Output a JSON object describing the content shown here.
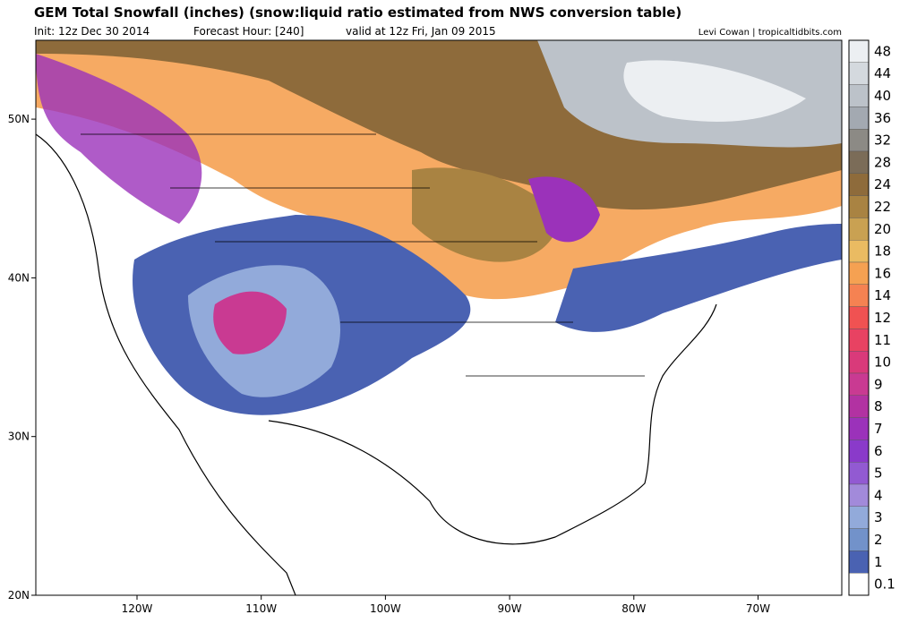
{
  "header": {
    "title": "GEM Total Snowfall (inches) (snow:liquid ratio estimated from NWS conversion table)",
    "init": "Init: 12z Dec 30 2014",
    "forecast_hour": "Forecast Hour: [240]",
    "valid": "valid at 12z Fri, Jan 09 2015",
    "credit": "Levi Cowan | tropicaltidbits.com"
  },
  "map": {
    "lon_ticks": [
      {
        "value": -120,
        "label": "120W"
      },
      {
        "value": -110,
        "label": "110W"
      },
      {
        "value": -100,
        "label": "100W"
      },
      {
        "value": -90,
        "label": "90W"
      },
      {
        "value": -80,
        "label": "80W"
      },
      {
        "value": -70,
        "label": "70W"
      }
    ],
    "lat_ticks": [
      {
        "value": 20,
        "label": "20N"
      },
      {
        "value": 30,
        "label": "30N"
      },
      {
        "value": 40,
        "label": "40N"
      },
      {
        "value": 50,
        "label": "50N"
      }
    ]
  },
  "colorbar": {
    "levels": [
      {
        "value": 48,
        "color": "#eceff2"
      },
      {
        "value": 44,
        "color": "#d4d9de"
      },
      {
        "value": 40,
        "color": "#bcc2c9"
      },
      {
        "value": 36,
        "color": "#a3a9b1"
      },
      {
        "value": 32,
        "color": "#8c8a85"
      },
      {
        "value": 28,
        "color": "#7b6c58"
      },
      {
        "value": 24,
        "color": "#8e6b3b"
      },
      {
        "value": 22,
        "color": "#a98342"
      },
      {
        "value": 20,
        "color": "#c9a152"
      },
      {
        "value": 18,
        "color": "#eabb62"
      },
      {
        "value": 16,
        "color": "#f5a152"
      },
      {
        "value": 14,
        "color": "#f58252"
      },
      {
        "value": 12,
        "color": "#f05252"
      },
      {
        "value": 11,
        "color": "#e84262"
      },
      {
        "value": 10,
        "color": "#d93a7a"
      },
      {
        "value": 9,
        "color": "#c93a92"
      },
      {
        "value": 8,
        "color": "#b232a2"
      },
      {
        "value": 7,
        "color": "#9b32ba"
      },
      {
        "value": 6,
        "color": "#8a3aca"
      },
      {
        "value": 5,
        "color": "#925ad2"
      },
      {
        "value": 4,
        "color": "#a28ada"
      },
      {
        "value": 3,
        "color": "#92aada"
      },
      {
        "value": 2,
        "color": "#7292ca"
      },
      {
        "value": 1,
        "color": "#4a62b2"
      },
      {
        "value": 0.1,
        "color": "#ffffff"
      }
    ]
  }
}
